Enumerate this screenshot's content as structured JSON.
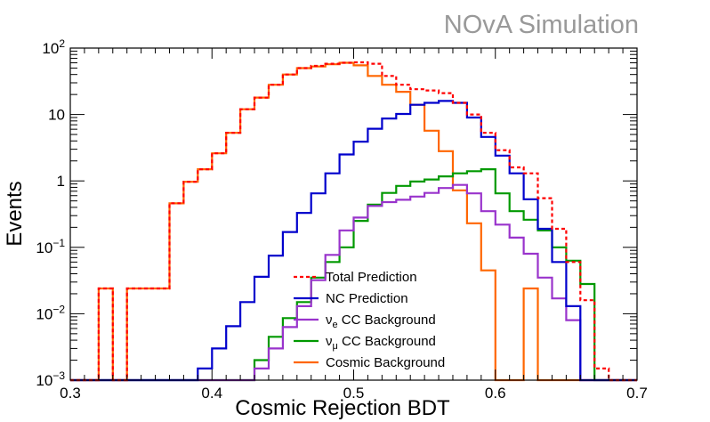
{
  "chart_data": {
    "type": "line",
    "style": "step-histogram",
    "title": "",
    "watermark": "NOvA Simulation",
    "xlabel": "Cosmic Rejection BDT",
    "ylabel": "Events",
    "xlim": [
      0.3,
      0.7
    ],
    "ylim": [
      0.001,
      100
    ],
    "yscale": "log",
    "xticks": [
      {
        "value": 0.3,
        "label": "0.3"
      },
      {
        "value": 0.4,
        "label": "0.4"
      },
      {
        "value": 0.5,
        "label": "0.5"
      },
      {
        "value": 0.6,
        "label": "0.6"
      },
      {
        "value": 0.7,
        "label": "0.7"
      }
    ],
    "yticks": [
      {
        "value": 0.001,
        "base": "10",
        "exp": "−3"
      },
      {
        "value": 0.01,
        "base": "10",
        "exp": "−2"
      },
      {
        "value": 0.1,
        "base": "10",
        "exp": "−1"
      },
      {
        "value": 1,
        "base": "1",
        "exp": ""
      },
      {
        "value": 10,
        "base": "10",
        "exp": ""
      },
      {
        "value": 100,
        "base": "10",
        "exp": "2"
      }
    ],
    "bin_edges": [
      0.3,
      0.31,
      0.32,
      0.33,
      0.34,
      0.35,
      0.36,
      0.37,
      0.38,
      0.39,
      0.4,
      0.41,
      0.42,
      0.43,
      0.44,
      0.45,
      0.46,
      0.47,
      0.48,
      0.49,
      0.5,
      0.51,
      0.52,
      0.53,
      0.54,
      0.55,
      0.56,
      0.57,
      0.58,
      0.59,
      0.6,
      0.61,
      0.62,
      0.63,
      0.64,
      0.65,
      0.66,
      0.67,
      0.68,
      0.69,
      0.7
    ],
    "legend_position": "bottom-center",
    "series": [
      {
        "name": "Total Prediction",
        "color": "#ff0000",
        "dashed": true,
        "values": [
          0.001,
          0.001,
          0.024,
          0.001,
          0.024,
          0.024,
          0.024,
          0.46,
          0.97,
          1.5,
          2.6,
          5.3,
          12,
          18,
          28,
          40,
          50,
          54,
          58,
          60,
          61,
          58,
          38,
          28,
          24,
          23,
          21,
          15,
          10,
          5.3,
          2.9,
          1.6,
          1.3,
          0.55,
          0.19,
          0.06,
          0.016,
          0.0015,
          0.001,
          0.001
        ]
      },
      {
        "name": "NC Prediction",
        "color": "#0000cc",
        "dashed": false,
        "values": [
          0.001,
          0.001,
          0.001,
          0.001,
          0.001,
          0.001,
          0.001,
          0.001,
          0.001,
          0.0015,
          0.003,
          0.0065,
          0.015,
          0.036,
          0.075,
          0.17,
          0.33,
          0.65,
          1.3,
          2.5,
          3.9,
          6.1,
          8.7,
          10.2,
          14,
          15,
          16,
          15,
          9,
          4.6,
          2.4,
          1.3,
          0.53,
          0.19,
          0.06,
          0.013,
          0.001,
          0.001,
          0.001,
          0.001
        ]
      },
      {
        "name": "ν_e CC Background",
        "label_base": "ν",
        "label_sub": "e",
        "label_rest": " CC Background",
        "color": "#9933cc",
        "dashed": false,
        "values": [
          0.001,
          0.001,
          0.001,
          0.001,
          0.001,
          0.001,
          0.001,
          0.001,
          0.001,
          0.001,
          0.001,
          0.001,
          0.001,
          0.0015,
          0.003,
          0.0063,
          0.013,
          0.032,
          0.077,
          0.18,
          0.28,
          0.42,
          0.48,
          0.52,
          0.58,
          0.66,
          0.78,
          0.87,
          0.65,
          0.35,
          0.22,
          0.14,
          0.08,
          0.035,
          0.017,
          0.008,
          0.001,
          0.001,
          0.001,
          0.001
        ]
      },
      {
        "name": "ν_μ CC Background",
        "label_base": "ν",
        "label_sub": "μ",
        "label_rest": " CC Background",
        "color": "#009900",
        "dashed": false,
        "values": [
          0.001,
          0.001,
          0.001,
          0.001,
          0.001,
          0.001,
          0.001,
          0.001,
          0.001,
          0.001,
          0.001,
          0.001,
          0.001,
          0.002,
          0.0045,
          0.0086,
          0.015,
          0.035,
          0.06,
          0.1,
          0.25,
          0.44,
          0.66,
          0.84,
          0.98,
          1.05,
          1.17,
          1.3,
          1.4,
          1.5,
          0.65,
          0.35,
          0.26,
          0.18,
          0.1,
          0.063,
          0.028,
          0.001,
          0.001,
          0.001
        ]
      },
      {
        "name": "Cosmic Background",
        "color": "#ff6600",
        "dashed": false,
        "values": [
          0.001,
          0.001,
          0.024,
          0.001,
          0.024,
          0.024,
          0.024,
          0.46,
          0.97,
          1.5,
          2.6,
          5.3,
          12,
          18,
          28,
          40,
          50,
          53,
          57,
          60,
          55,
          38,
          28,
          22,
          14,
          5.7,
          2.8,
          0.72,
          0.23,
          0.045,
          0.001,
          0.001,
          0.024,
          0.001,
          0.001,
          0.001,
          0.001,
          0.001,
          0.001,
          0.001
        ]
      }
    ]
  }
}
